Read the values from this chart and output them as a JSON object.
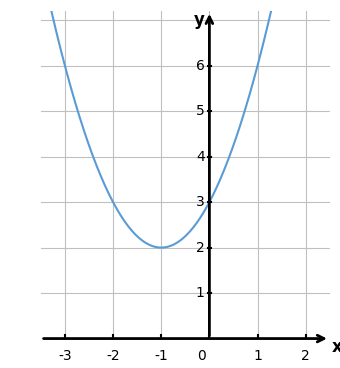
{
  "title": "",
  "xlabel": "x",
  "ylabel": "y",
  "xlim": [
    -3.5,
    2.5
  ],
  "ylim": [
    0,
    7.2
  ],
  "xticks": [
    -3,
    -2,
    -1,
    0,
    1,
    2
  ],
  "yticks": [
    1,
    2,
    3,
    4,
    5,
    6
  ],
  "grid_color": "#c0c0c0",
  "grid_linewidth": 0.8,
  "curve_color": "#5b9bd5",
  "curve_linewidth": 1.5,
  "background_color": "#ffffff",
  "a": 1,
  "b": 2,
  "c": 3,
  "x_start": -3.5,
  "x_end": 1.45,
  "axis_color": "#000000",
  "tick_fontsize": 10,
  "label_fontsize": 12
}
